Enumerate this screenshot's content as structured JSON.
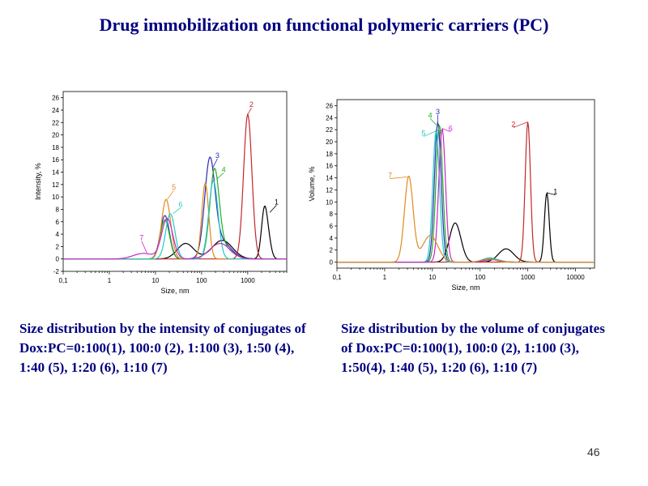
{
  "slide": {
    "title": "Drug immobilization on functional polymeric carriers (PC)",
    "caption_left": "Size distribution by the intensity of conjugates of Dox:PC=0:100(1), 100:0 (2), 1:100 (3), 1:50 (4), 1:40 (5), 1:20 (6), 1:10 (7)",
    "caption_right": "Size distribution by the volume of conjugates of  Dox:PC=0:100(1), 100:0 (2), 1:100 (3), 1:50(4), 1:40 (5), 1:20 (6), 1:10 (7)",
    "page_number": "46"
  },
  "chart_data": [
    {
      "type": "line",
      "xscale": "log",
      "xlabel": "Size, nm",
      "ylabel": "Intensity, %",
      "xlim": [
        0.1,
        7000
      ],
      "ylim": [
        -2,
        27
      ],
      "xticks": [
        0.1,
        1,
        10,
        100,
        1000
      ],
      "xtick_labels": [
        "0,1",
        "1",
        "10",
        "100",
        "1000"
      ],
      "yticks": [
        -2,
        0,
        2,
        4,
        6,
        8,
        10,
        12,
        14,
        16,
        18,
        20,
        22,
        24,
        26
      ],
      "series": [
        {
          "name": "1",
          "color": "#000000",
          "label_at": [
            4200,
            8.8
          ],
          "tip": [
            3000,
            7.5
          ],
          "peaks": [
            [
              45,
              0.18,
              2.5
            ],
            [
              280,
              0.22,
              3.0
            ],
            [
              2300,
              0.065,
              8.0
            ],
            [
              2900,
              0.06,
              2.0
            ]
          ]
        },
        {
          "name": "2",
          "color": "#c0282c",
          "label_at": [
            1200,
            24.5
          ],
          "tip": [
            1000,
            23.3
          ],
          "peaks": [
            [
              1000,
              0.09,
              23.3
            ]
          ]
        },
        {
          "name": "3",
          "color": "#2a2ab8",
          "label_at": [
            220,
            16.3
          ],
          "tip": [
            170,
            14.5
          ],
          "peaks": [
            [
              16,
              0.1,
              7.0
            ],
            [
              150,
              0.11,
              14.6
            ],
            [
              250,
              0.22,
              3.0
            ]
          ]
        },
        {
          "name": "4",
          "color": "#22b022",
          "label_at": [
            300,
            14.0
          ],
          "tip": [
            220,
            13.0
          ],
          "peaks": [
            [
              16,
              0.1,
              6.3
            ],
            [
              190,
              0.1,
              13.2
            ],
            [
              280,
              0.2,
              2.0
            ]
          ]
        },
        {
          "name": "5",
          "color": "#e08a1e",
          "label_at": [
            25,
            11.2
          ],
          "tip": [
            18,
            9.6
          ],
          "peaks": [
            [
              17,
              0.1,
              9.6
            ],
            [
              120,
              0.075,
              12.2
            ]
          ]
        },
        {
          "name": "6",
          "color": "#22c8c8",
          "label_at": [
            35,
            8.4
          ],
          "tip": [
            24,
            7.3
          ],
          "peaks": [
            [
              21,
              0.1,
              7.3
            ],
            [
              180,
              0.1,
              12.6
            ]
          ]
        },
        {
          "name": "7",
          "color": "#c828c8",
          "label_at": [
            5,
            3.0
          ],
          "tip": [
            6.5,
            1.0
          ],
          "peaks": [
            [
              5.5,
              0.22,
              0.9
            ],
            [
              18,
              0.12,
              6.5
            ],
            [
              250,
              0.22,
              2.5
            ]
          ]
        }
      ]
    },
    {
      "type": "line",
      "xscale": "log",
      "xlabel": "Size, nm",
      "ylabel": "Volume, %",
      "xlim": [
        0.1,
        25000
      ],
      "ylim": [
        -1,
        27
      ],
      "xticks": [
        0.1,
        1,
        10,
        100,
        1000,
        10000
      ],
      "xtick_labels": [
        "0,1",
        "1",
        "10",
        "100",
        "1000",
        "10000"
      ],
      "yticks": [
        0,
        2,
        4,
        6,
        8,
        10,
        12,
        14,
        16,
        18,
        20,
        22,
        24,
        26
      ],
      "series": [
        {
          "name": "1",
          "color": "#000000",
          "label_at": [
            3800,
            11.3
          ],
          "tip": [
            2500,
            11.5
          ],
          "peaks": [
            [
              30,
              0.12,
              6.5
            ],
            [
              350,
              0.16,
              2.2
            ],
            [
              2500,
              0.05,
              11.5
            ]
          ]
        },
        {
          "name": "2",
          "color": "#c0282c",
          "label_at": [
            500,
            22.5
          ],
          "tip": [
            1000,
            23.3
          ],
          "peaks": [
            [
              1000,
              0.055,
              23.3
            ]
          ]
        },
        {
          "name": "3",
          "color": "#2a2ab8",
          "label_at": [
            13,
            24.6
          ],
          "tip": [
            13,
            23.2
          ],
          "peaks": [
            [
              13,
              0.07,
              23.2
            ],
            [
              180,
              0.15,
              0.5
            ]
          ]
        },
        {
          "name": "4",
          "color": "#22b022",
          "label_at": [
            9,
            24.0
          ],
          "tip": [
            12,
            22.8
          ],
          "peaks": [
            [
              14,
              0.07,
              22.8
            ],
            [
              170,
              0.15,
              0.6
            ]
          ]
        },
        {
          "name": "5",
          "color": "#22c8c8",
          "label_at": [
            6.5,
            21.0
          ],
          "tip": [
            12,
            21.8
          ],
          "peaks": [
            [
              12,
              0.07,
              21.8
            ],
            [
              160,
              0.15,
              0.7
            ]
          ]
        },
        {
          "name": "6",
          "color": "#c828c8",
          "label_at": [
            24,
            21.8
          ],
          "tip": [
            16,
            22.2
          ],
          "peaks": [
            [
              16,
              0.07,
              22.2
            ],
            [
              170,
              0.15,
              0.4
            ]
          ]
        },
        {
          "name": "7",
          "color": "#e08a1e",
          "label_at": [
            1.3,
            14.0
          ],
          "tip": [
            3.2,
            14.2
          ],
          "peaks": [
            [
              3.2,
              0.09,
              14.2
            ],
            [
              9,
              0.16,
              4.4
            ],
            [
              150,
              0.15,
              0.5
            ]
          ]
        }
      ]
    }
  ]
}
